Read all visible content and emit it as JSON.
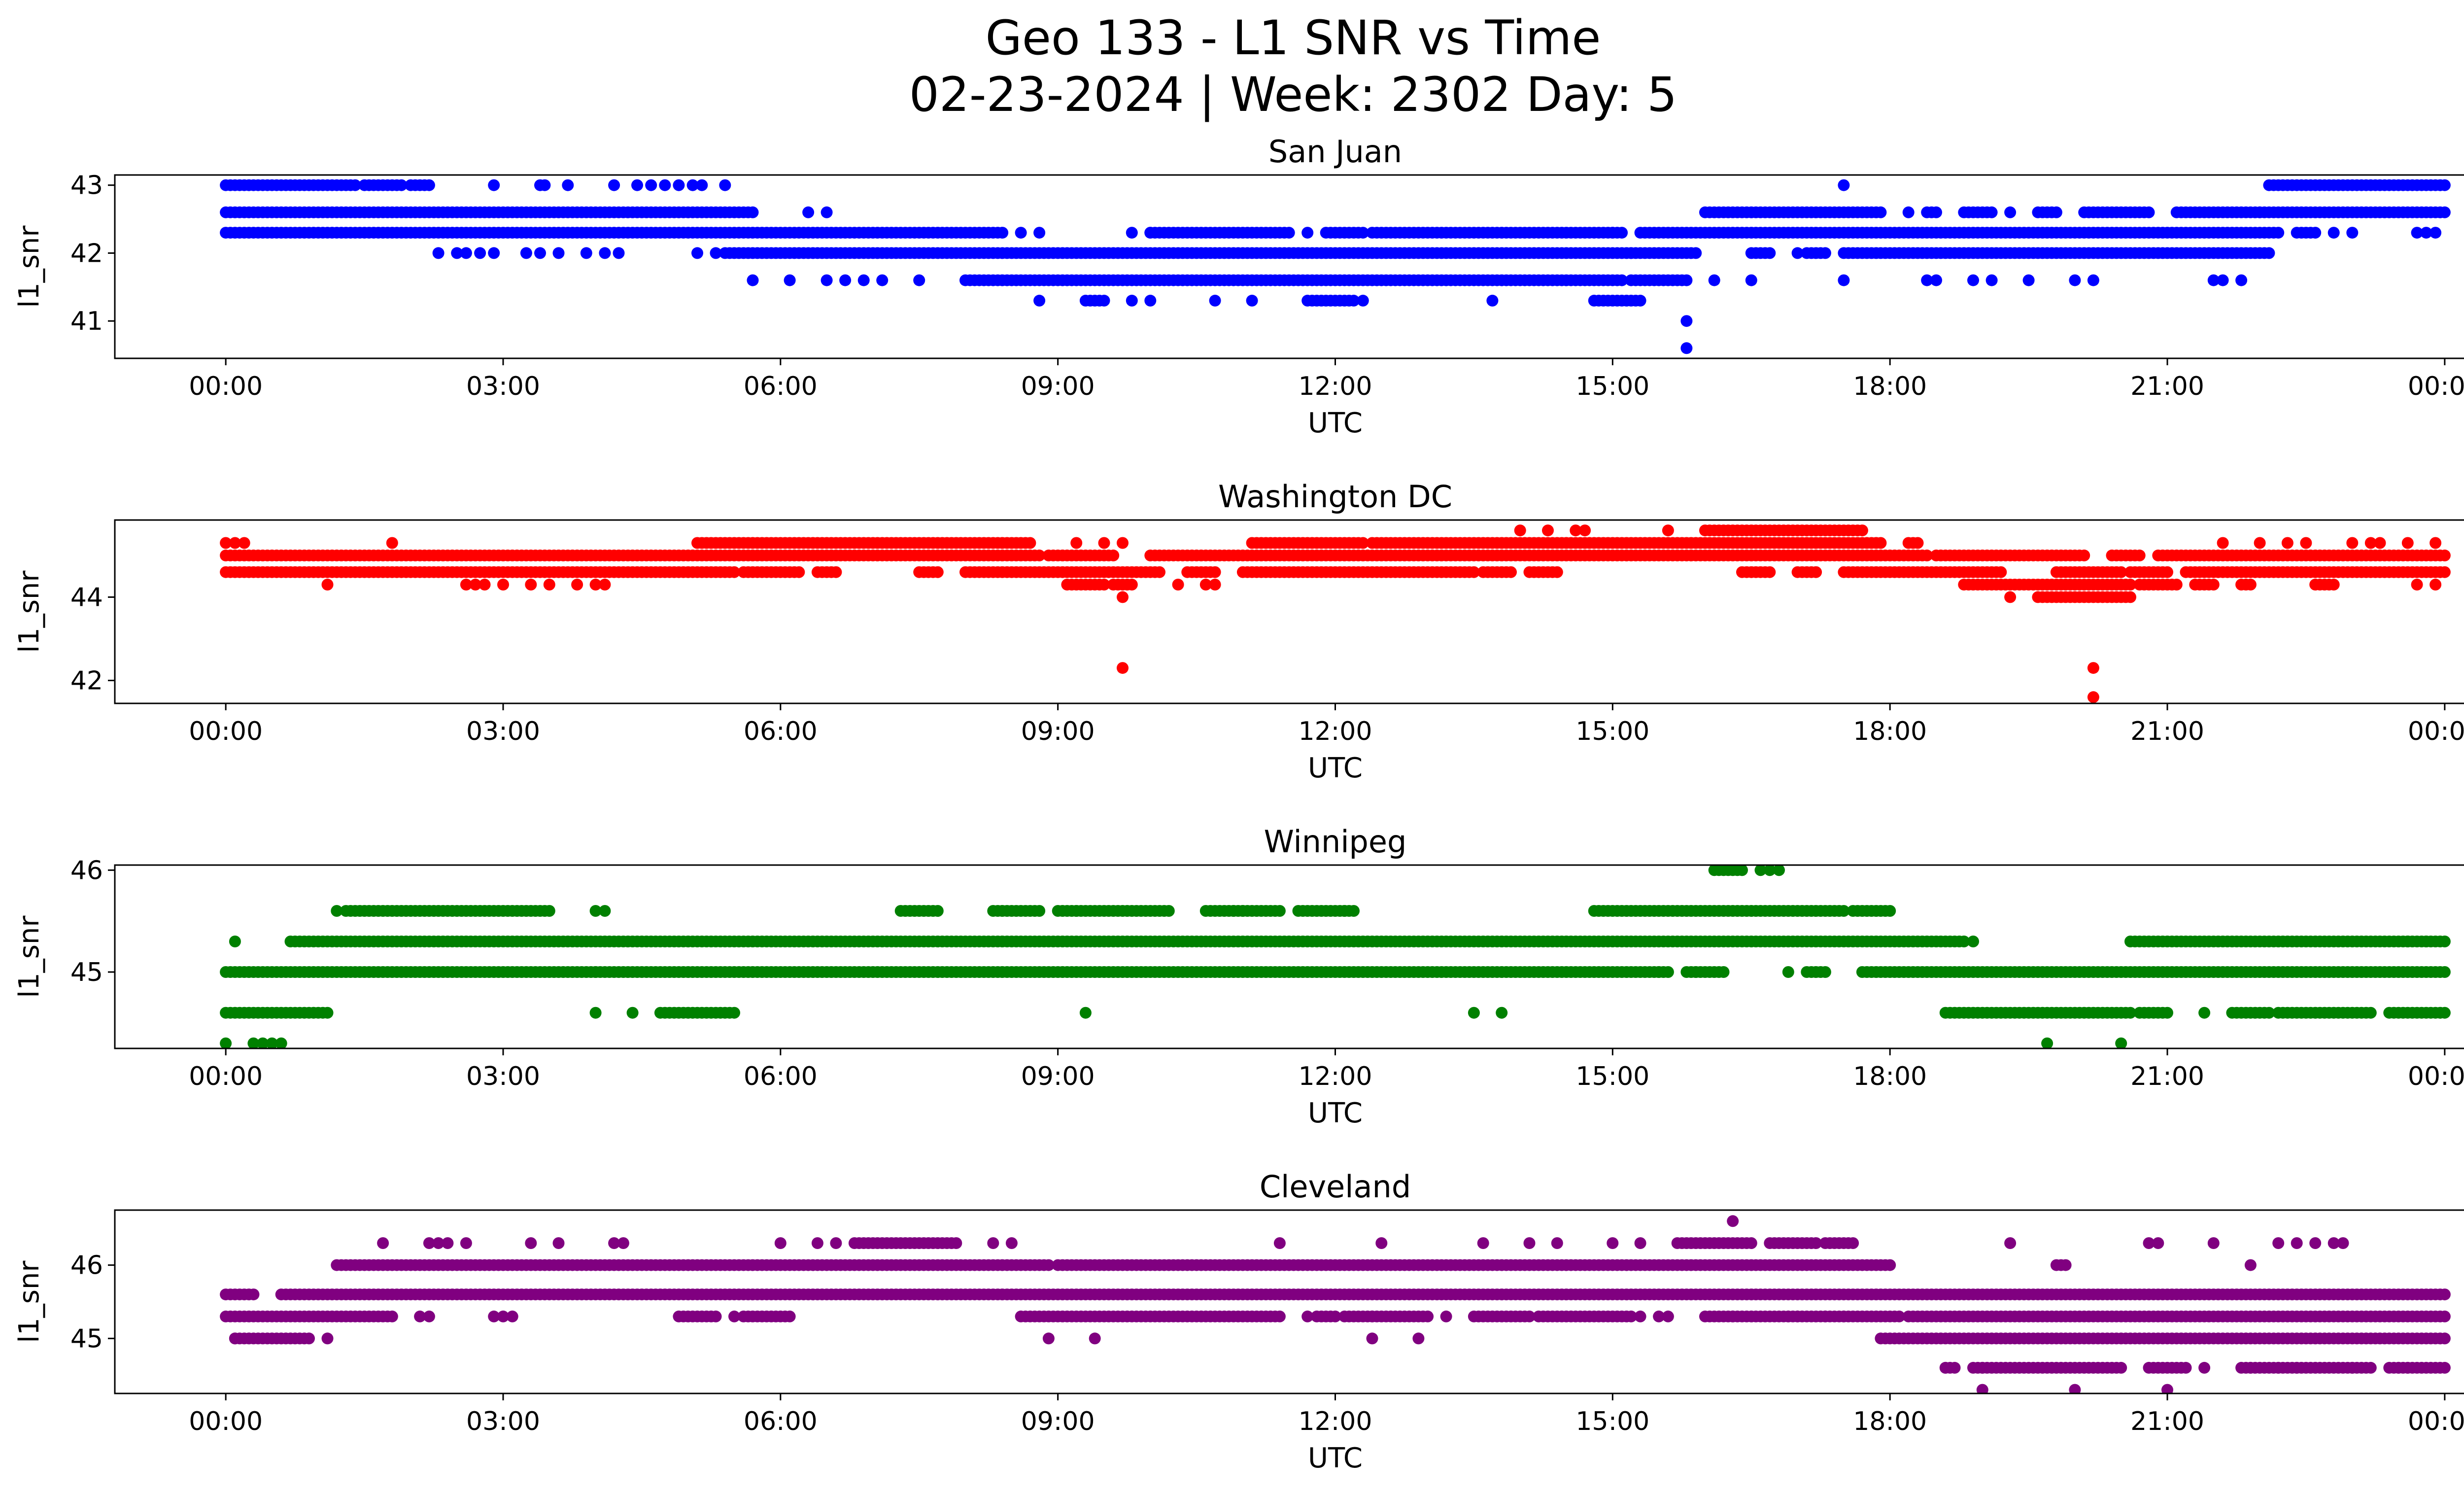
{
  "title_line1": "Geo 133 - L1 SNR vs Time",
  "title_line2": "02-23-2024 | Week: 2302 Day: 5",
  "chart_data": [
    {
      "type": "scatter",
      "title": "San Juan",
      "xlabel": "UTC",
      "ylabel": "l1_snr",
      "color": "#0000ff",
      "xlim_hours": [
        -1.2,
        25.2
      ],
      "ylim": [
        40.45,
        43.15
      ],
      "yticks": [
        41,
        42,
        43
      ],
      "xtick_labels": [
        "00:00",
        "03:00",
        "06:00",
        "09:00",
        "12:00",
        "15:00",
        "18:00",
        "21:00",
        "00:00"
      ],
      "bands": [
        {
          "y": 43.0,
          "segments": [
            [
              0.0,
              1.4
            ],
            [
              1.5,
              1.9
            ],
            [
              2.0,
              2.2
            ]
          ],
          "points": [
            2.9,
            3.4,
            3.45,
            3.7,
            4.2,
            4.45,
            4.6,
            4.75,
            4.9,
            5.05,
            5.15,
            5.4,
            17.5
          ],
          "segments_late": [
            [
              22.1,
              24.0
            ]
          ]
        },
        {
          "y": 42.6,
          "segments": [
            [
              0.0,
              5.7
            ],
            [
              16.0,
              17.9
            ],
            [
              18.4,
              18.5
            ],
            [
              18.8,
              19.1
            ],
            [
              19.6,
              19.8
            ],
            [
              20.1,
              20.8
            ],
            [
              21.1,
              24.0
            ]
          ],
          "points": [
            6.3,
            6.5,
            18.2,
            19.3,
            22.0
          ]
        },
        {
          "y": 42.3,
          "segments": [
            [
              0.0,
              8.4
            ],
            [
              10.0,
              11.5
            ],
            [
              11.9,
              12.3
            ],
            [
              12.4,
              15.1
            ],
            [
              15.3,
              22.2
            ],
            [
              22.4,
              22.6
            ]
          ],
          "points": [
            8.6,
            8.8,
            9.8,
            10.0,
            11.7,
            15.0,
            22.8,
            23.0,
            23.7,
            23.8,
            23.9
          ]
        },
        {
          "y": 42.0,
          "segments": [
            [
              5.4,
              15.9
            ],
            [
              16.5,
              16.7
            ],
            [
              17.1,
              17.3
            ],
            [
              17.5,
              22.1
            ]
          ],
          "points": [
            2.3,
            2.5,
            2.6,
            2.75,
            2.9,
            3.25,
            3.4,
            3.6,
            3.9,
            4.1,
            4.25,
            5.1,
            5.3,
            15.2,
            17.0
          ]
        },
        {
          "y": 41.6,
          "segments": [
            [
              8.0,
              15.1
            ],
            [
              15.2,
              15.8
            ]
          ],
          "points": [
            5.7,
            6.1,
            6.5,
            6.7,
            6.9,
            7.1,
            7.5,
            16.1,
            16.5,
            17.5,
            18.4,
            18.5,
            18.9,
            19.1,
            19.5,
            20.0,
            20.2,
            21.5,
            21.6,
            21.8
          ]
        },
        {
          "y": 41.3,
          "segments": [
            [
              9.3,
              9.5
            ],
            [
              11.7,
              12.2
            ],
            [
              14.8,
              15.3
            ]
          ],
          "points": [
            8.8,
            9.8,
            10.0,
            10.7,
            11.1,
            12.3,
            13.7
          ]
        },
        {
          "y": 41.0,
          "points": [
            15.8
          ]
        },
        {
          "y": 40.6,
          "points": [
            15.8
          ]
        }
      ]
    },
    {
      "type": "scatter",
      "title": "Washington DC",
      "xlabel": "UTC",
      "ylabel": "l1_snr",
      "color": "#ff0000",
      "xlim_hours": [
        -1.2,
        25.2
      ],
      "ylim": [
        41.45,
        45.85
      ],
      "yticks": [
        42,
        44
      ],
      "xtick_labels": [
        "00:00",
        "03:00",
        "06:00",
        "09:00",
        "12:00",
        "15:00",
        "18:00",
        "21:00",
        "00:00"
      ],
      "bands": [
        {
          "y": 45.6,
          "segments": [
            [
              16.0,
              17.7
            ]
          ],
          "points": [
            14.0,
            14.3,
            14.6,
            14.7,
            15.6
          ]
        },
        {
          "y": 45.3,
          "segments": [
            [
              5.1,
              8.7
            ],
            [
              11.1,
              12.3
            ],
            [
              12.4,
              17.9
            ],
            [
              18.2,
              18.3
            ]
          ],
          "points": [
            0.0,
            0.1,
            0.2,
            1.8,
            9.2,
            9.5,
            9.7,
            21.6,
            22.0,
            22.3,
            22.5,
            23.0,
            23.2,
            23.3,
            23.6,
            23.9
          ]
        },
        {
          "y": 45.0,
          "segments": [
            [
              0.0,
              8.8
            ],
            [
              8.9,
              9.6
            ],
            [
              10.0,
              18.4
            ],
            [
              18.5,
              20.1
            ],
            [
              20.4,
              20.7
            ],
            [
              20.9,
              24.0
            ]
          ],
          "points": []
        },
        {
          "y": 44.6,
          "segments": [
            [
              0.0,
              5.5
            ],
            [
              5.6,
              6.2
            ],
            [
              6.4,
              6.6
            ],
            [
              7.5,
              7.7
            ],
            [
              8.0,
              10.1
            ],
            [
              10.4,
              10.7
            ],
            [
              11.0,
              13.5
            ],
            [
              13.6,
              13.9
            ],
            [
              14.1,
              14.4
            ],
            [
              16.4,
              16.7
            ],
            [
              17.0,
              17.2
            ],
            [
              17.5,
              19.2
            ],
            [
              19.8,
              20.5
            ],
            [
              20.6,
              21.0
            ],
            [
              21.2,
              24.0
            ]
          ],
          "points": []
        },
        {
          "y": 44.3,
          "segments": [
            [
              9.1,
              9.5
            ],
            [
              9.6,
              9.8
            ],
            [
              18.8,
              20.6
            ],
            [
              20.7,
              21.1
            ],
            [
              21.3,
              21.5
            ],
            [
              21.8,
              21.9
            ],
            [
              22.6,
              22.8
            ]
          ],
          "points": [
            1.1,
            2.6,
            2.7,
            2.8,
            3.0,
            3.3,
            3.5,
            3.8,
            4.0,
            4.1,
            10.3,
            10.6,
            10.7,
            23.7,
            23.9
          ]
        },
        {
          "y": 44.0,
          "segments": [
            [
              19.6,
              20.6
            ]
          ],
          "points": [
            9.7,
            19.3
          ]
        },
        {
          "y": 42.3,
          "points": [
            9.7,
            20.2
          ]
        },
        {
          "y": 41.6,
          "points": [
            20.2
          ]
        }
      ]
    },
    {
      "type": "scatter",
      "title": "Winnipeg",
      "xlabel": "UTC",
      "ylabel": "l1_snr",
      "color": "#008000",
      "xlim_hours": [
        -1.2,
        25.2
      ],
      "ylim": [
        44.25,
        46.05
      ],
      "yticks": [
        45,
        46
      ],
      "xtick_labels": [
        "00:00",
        "03:00",
        "06:00",
        "09:00",
        "12:00",
        "15:00",
        "18:00",
        "21:00",
        "00:00"
      ],
      "bands": [
        {
          "y": 46.0,
          "segments": [
            [
              16.1,
              16.4
            ]
          ],
          "points": [
            16.6,
            16.7,
            16.8
          ]
        },
        {
          "y": 45.6,
          "segments": [
            [
              1.3,
              3.5
            ],
            [
              7.3,
              7.7
            ],
            [
              8.3,
              8.8
            ],
            [
              9.0,
              10.2
            ],
            [
              10.6,
              11.0
            ],
            [
              11.0,
              11.4
            ],
            [
              11.6,
              12.2
            ],
            [
              14.8,
              17.5
            ],
            [
              17.6,
              18.0
            ]
          ],
          "points": [
            1.2,
            4.0,
            4.1,
            9.2,
            10.9,
            12.1
          ]
        },
        {
          "y": 45.3,
          "segments": [
            [
              0.7,
              18.8
            ],
            [
              20.6,
              24.0
            ]
          ],
          "points": [
            0.1,
            18.9,
            23.6,
            23.8
          ]
        },
        {
          "y": 45.0,
          "segments": [
            [
              0.0,
              15.6
            ],
            [
              15.8,
              16.2
            ],
            [
              17.1,
              17.3
            ],
            [
              17.7,
              24.0
            ]
          ],
          "points": [
            4.0,
            15.5,
            15.9,
            16.9
          ]
        },
        {
          "y": 44.6,
          "segments": [
            [
              0.0,
              1.1
            ],
            [
              4.7,
              5.5
            ],
            [
              18.6,
              20.6
            ],
            [
              20.7,
              21.0
            ],
            [
              21.7,
              22.1
            ],
            [
              22.2,
              23.2
            ],
            [
              23.4,
              24.0
            ]
          ],
          "points": [
            4.0,
            4.4,
            9.3,
            13.5,
            13.8,
            21.4
          ]
        },
        {
          "y": 44.3,
          "points": [
            0.0,
            0.3,
            0.4,
            0.5,
            0.6,
            19.7,
            20.5
          ]
        }
      ]
    },
    {
      "type": "scatter",
      "title": "Cleveland",
      "xlabel": "UTC",
      "ylabel": "l1_snr",
      "color": "#800080",
      "xlim_hours": [
        -1.2,
        25.2
      ],
      "ylim": [
        44.25,
        46.75
      ],
      "yticks": [
        45,
        46
      ],
      "xtick_labels": [
        "00:00",
        "03:00",
        "06:00",
        "09:00",
        "12:00",
        "15:00",
        "18:00",
        "21:00",
        "00:00"
      ],
      "bands": [
        {
          "y": 46.6,
          "points": [
            16.3
          ]
        },
        {
          "y": 46.3,
          "segments": [
            [
              6.8,
              7.9
            ],
            [
              15.7,
              16.5
            ],
            [
              16.7,
              17.2
            ],
            [
              17.3,
              17.6
            ]
          ],
          "points": [
            1.7,
            2.2,
            2.3,
            2.4,
            2.6,
            3.3,
            3.6,
            4.2,
            4.3,
            6.0,
            6.4,
            6.6,
            8.3,
            8.5,
            11.4,
            12.5,
            13.6,
            14.1,
            14.4,
            15.0,
            15.3,
            19.3,
            20.8,
            20.9,
            21.5,
            22.2,
            22.4,
            22.6,
            22.8,
            22.9
          ]
        },
        {
          "y": 46.0,
          "segments": [
            [
              1.2,
              8.9
            ],
            [
              9.0,
              18.0
            ],
            [
              19.8,
              19.9
            ]
          ],
          "points": [
            21.9
          ]
        },
        {
          "y": 45.6,
          "segments": [
            [
              0.0,
              0.3
            ],
            [
              0.6,
              24.0
            ]
          ],
          "points": []
        },
        {
          "y": 45.3,
          "segments": [
            [
              0.0,
              1.8
            ],
            [
              4.9,
              5.3
            ],
            [
              5.6,
              6.1
            ],
            [
              8.6,
              11.4
            ],
            [
              11.8,
              12.0
            ],
            [
              12.1,
              13.0
            ],
            [
              13.5,
              14.1
            ],
            [
              14.2,
              15.2
            ],
            [
              16.0,
              18.1
            ],
            [
              18.2,
              24.0
            ]
          ],
          "points": [
            2.1,
            2.2,
            2.9,
            3.0,
            3.1,
            5.5,
            11.7,
            12.4,
            13.2,
            15.3,
            15.5,
            15.6,
            16.3,
            16.9,
            17.0,
            17.3,
            17.5
          ]
        },
        {
          "y": 45.0,
          "segments": [
            [
              0.1,
              0.9
            ],
            [
              17.9,
              24.0
            ]
          ],
          "points": [
            0.1,
            1.1,
            8.9,
            9.4,
            12.4,
            12.9
          ]
        },
        {
          "y": 44.6,
          "segments": [
            [
              18.6,
              18.7
            ],
            [
              18.9,
              20.5
            ],
            [
              20.8,
              21.2
            ],
            [
              21.8,
              23.2
            ],
            [
              23.4,
              23.6
            ],
            [
              23.6,
              24.0
            ]
          ],
          "points": [
            18.6,
            19.0,
            21.4,
            21.9,
            22.2,
            22.4,
            23.0,
            23.5
          ]
        },
        {
          "y": 44.3,
          "points": [
            19.0,
            20.0,
            21.0
          ]
        }
      ]
    }
  ]
}
